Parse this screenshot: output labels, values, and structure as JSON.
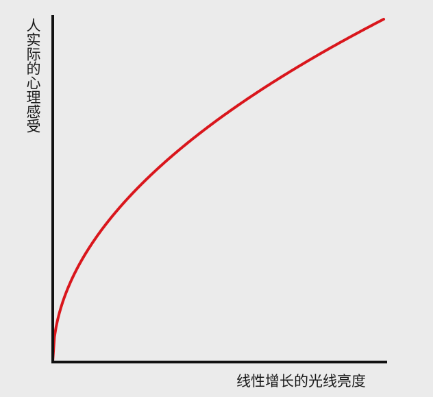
{
  "chart_data": {
    "type": "line",
    "title": "",
    "xlabel": "线性增长的光线亮度",
    "ylabel": "人实际的心理感受",
    "grid": false,
    "legend": "none",
    "colors": {
      "curve": "#d9161c",
      "axis": "#111111",
      "background": "#ebebeb"
    },
    "series": [
      {
        "color": "#d9161c",
        "x": [
          0,
          0.01,
          0.02,
          0.04,
          0.06,
          0.08,
          0.1,
          0.13,
          0.16,
          0.2,
          0.25,
          0.3,
          0.35,
          0.4,
          0.45,
          0.5,
          0.55,
          0.6,
          0.65,
          0.7,
          0.75,
          0.8,
          0.85,
          0.9,
          0.95,
          1.0
        ],
        "y": [
          0,
          0.1,
          0.141,
          0.2,
          0.245,
          0.283,
          0.316,
          0.361,
          0.4,
          0.447,
          0.5,
          0.548,
          0.592,
          0.632,
          0.671,
          0.707,
          0.742,
          0.775,
          0.806,
          0.837,
          0.866,
          0.894,
          0.922,
          0.949,
          0.975,
          1.0
        ]
      }
    ],
    "xlim": [
      0,
      1
    ],
    "ylim": [
      0,
      1
    ],
    "ticks": false
  }
}
